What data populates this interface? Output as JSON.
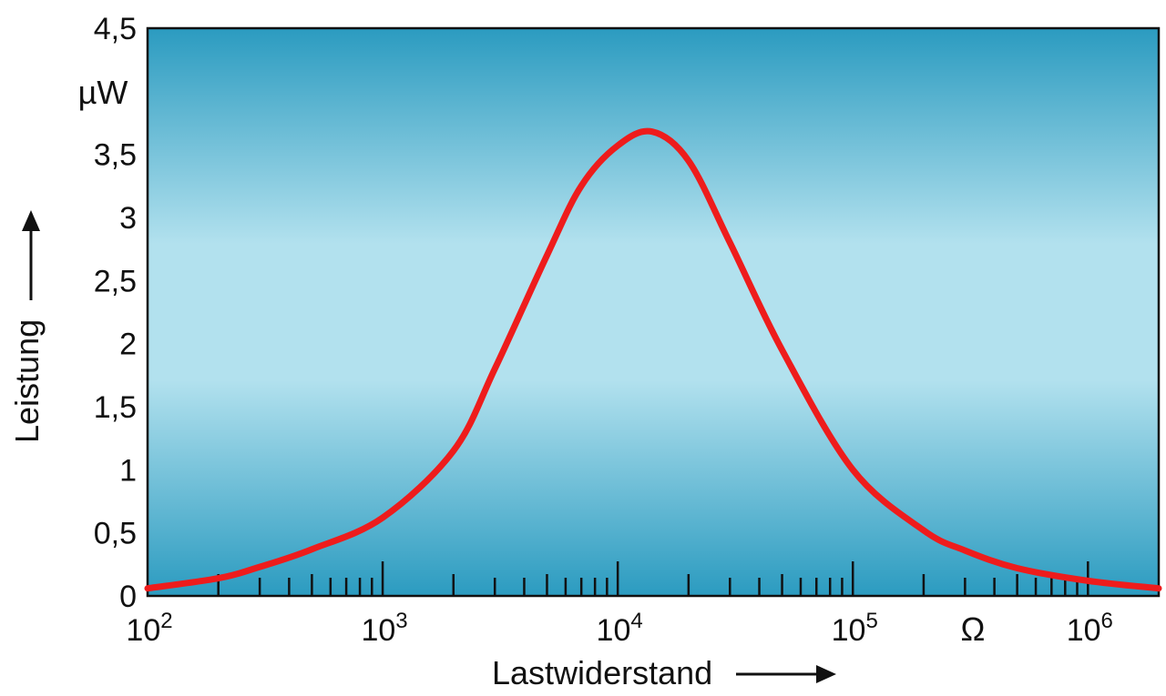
{
  "chart_data": {
    "type": "line",
    "title": "",
    "xlabel": "Lastwiderstand",
    "ylabel": "Leistung",
    "y_unit": "µW",
    "x_unit": "Ω",
    "x_scale": "log",
    "xlim": [
      100,
      2000000
    ],
    "ylim": [
      0,
      4.5
    ],
    "grid": false,
    "y_ticks": [
      {
        "value": 0,
        "label": "0"
      },
      {
        "value": 0.5,
        "label": "0,5"
      },
      {
        "value": 1,
        "label": "1"
      },
      {
        "value": 1.5,
        "label": "1,5"
      },
      {
        "value": 2,
        "label": "2"
      },
      {
        "value": 2.5,
        "label": "2,5"
      },
      {
        "value": 3,
        "label": "3"
      },
      {
        "value": 3.5,
        "label": "3,5"
      },
      {
        "value": 4.5,
        "label": "4,5"
      }
    ],
    "x_ticks": [
      {
        "value": 100,
        "base": "10",
        "exp": "2"
      },
      {
        "value": 1000,
        "base": "10",
        "exp": "3"
      },
      {
        "value": 10000,
        "base": "10",
        "exp": "4"
      },
      {
        "value": 100000,
        "base": "10",
        "exp": "5"
      },
      {
        "value": 1000000,
        "base": "10",
        "exp": "6"
      }
    ],
    "colors": {
      "line": "#ee1c1c",
      "background_edge": "#2b9bc0",
      "background_center": "#b2e1ee",
      "axis": "#111111"
    },
    "series": [
      {
        "x": [
          100,
          200,
          300,
          500,
          1000,
          2000,
          3000,
          5000,
          7000,
          10000,
          14000,
          20000,
          30000,
          50000,
          100000,
          200000,
          300000,
          500000,
          1000000,
          2000000
        ],
        "y": [
          0.06,
          0.14,
          0.23,
          0.37,
          0.62,
          1.15,
          1.8,
          2.7,
          3.25,
          3.57,
          3.68,
          3.45,
          2.8,
          1.95,
          1.0,
          0.52,
          0.36,
          0.22,
          0.12,
          0.06
        ]
      }
    ]
  }
}
